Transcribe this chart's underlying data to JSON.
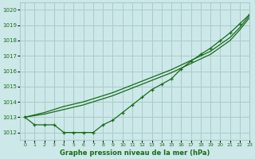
{
  "title": "Graphe pression niveau de la mer (hPa)",
  "background_color": "#cce8e8",
  "grid_color": "#aacccc",
  "line_color": "#1a6b1a",
  "xlim": [
    -0.5,
    23
  ],
  "ylim": [
    1011.5,
    1020.5
  ],
  "yticks": [
    1012,
    1013,
    1014,
    1015,
    1016,
    1017,
    1018,
    1019,
    1020
  ],
  "xticks": [
    0,
    1,
    2,
    3,
    4,
    5,
    6,
    7,
    8,
    9,
    10,
    11,
    12,
    13,
    14,
    15,
    16,
    17,
    18,
    19,
    20,
    21,
    22,
    23
  ],
  "hours": [
    0,
    1,
    2,
    3,
    4,
    5,
    6,
    7,
    8,
    9,
    10,
    11,
    12,
    13,
    14,
    15,
    16,
    17,
    18,
    19,
    20,
    21,
    22,
    23
  ],
  "line_smooth1": [
    1013.0,
    1013.1,
    1013.2,
    1013.35,
    1013.5,
    1013.65,
    1013.8,
    1014.0,
    1014.2,
    1014.4,
    1014.65,
    1014.9,
    1015.15,
    1015.4,
    1015.65,
    1015.9,
    1016.2,
    1016.5,
    1016.8,
    1017.1,
    1017.55,
    1018.0,
    1018.7,
    1019.5
  ],
  "line_smooth2": [
    1013.0,
    1013.15,
    1013.3,
    1013.5,
    1013.7,
    1013.85,
    1014.0,
    1014.2,
    1014.4,
    1014.6,
    1014.85,
    1015.1,
    1015.35,
    1015.6,
    1015.85,
    1016.1,
    1016.4,
    1016.7,
    1017.0,
    1017.3,
    1017.75,
    1018.2,
    1018.85,
    1019.65
  ],
  "line_markers": [
    1013.0,
    1012.5,
    1012.5,
    1012.5,
    1012.0,
    1012.0,
    1012.0,
    1012.0,
    1012.5,
    1012.8,
    1013.3,
    1013.8,
    1014.3,
    1014.8,
    1015.15,
    1015.5,
    1016.15,
    1016.65,
    1017.1,
    1017.5,
    1018.0,
    1018.5,
    1019.1,
    1019.7
  ]
}
